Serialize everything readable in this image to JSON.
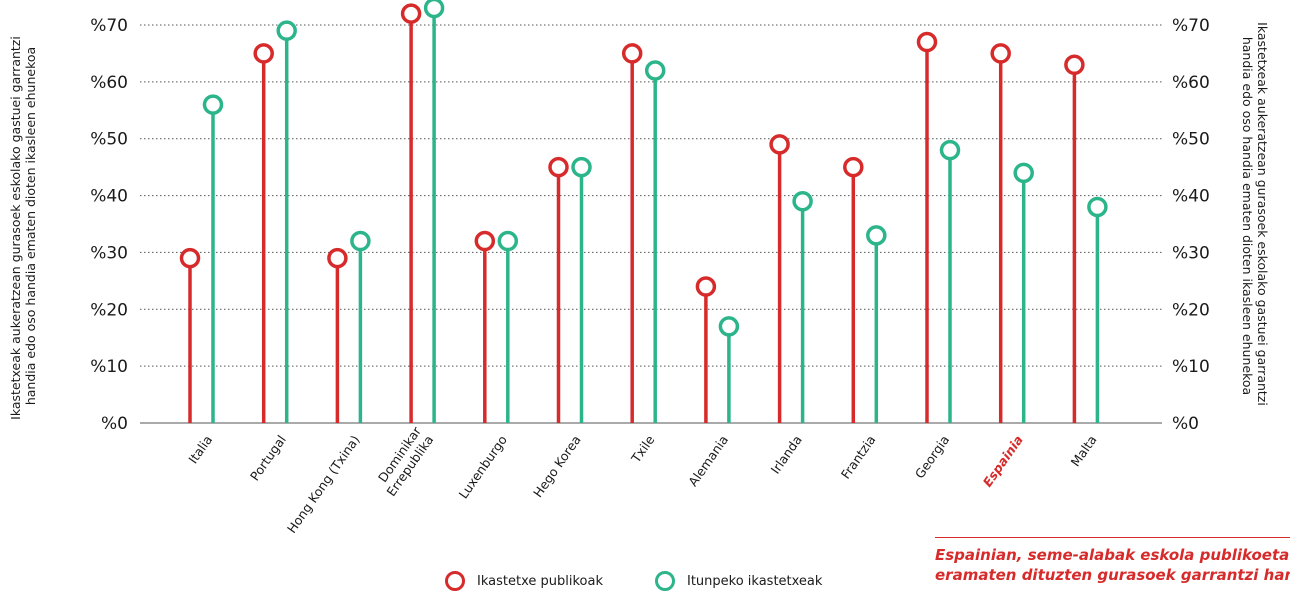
{
  "chart_data": {
    "type": "lollipop",
    "categories": [
      "Italia",
      "Portugal",
      "Hong Kong (Txina)",
      "Dominikar\nErrepublika",
      "Luxenburgo",
      "Hego Korea",
      "Txile",
      "Alemania",
      "Irlanda",
      "Frantzia",
      "Georgia",
      "Espainia",
      "Malta"
    ],
    "highlight_category": "Espainia",
    "series": [
      {
        "name": "Ikastetxe publikoak",
        "color": "#d72b2b",
        "values": [
          29,
          65,
          29,
          72,
          32,
          45,
          65,
          24,
          49,
          45,
          67,
          65,
          63
        ]
      },
      {
        "name": "Itunpeko ikastetxeak",
        "color": "#2cb58a",
        "values": [
          56,
          69,
          32,
          73,
          32,
          45,
          62,
          17,
          39,
          33,
          48,
          44,
          38
        ]
      }
    ],
    "ylim": [
      0,
      70
    ],
    "yticks": [
      "%0",
      "%10",
      "%20",
      "%30",
      "%40",
      "%50",
      "%60",
      "%70"
    ],
    "ylabel_left": [
      "Ikastetxeak aukeratzean gurasoek eskolako gastuei garrantzi",
      "handia edo oso handia ematen dioten ikasleen ehunekoa"
    ],
    "ylabel_right": [
      "Ikastetxeak aukeratzean gurasoek eskolako gastuei garrantzi",
      "handia edo oso handia ematen dioten ikasleen ehunekoa"
    ],
    "grid": "horizontal-dotted",
    "legend_position": "bottom"
  },
  "legend": {
    "public_label": "Ikastetxe publikoak",
    "charter_label": "Itunpeko ikastetxeak"
  },
  "note": {
    "line1": "Espainian, seme-alabak eskola publikoeta",
    "line2": "eramaten dituzten gurasoek garrantzi han"
  }
}
